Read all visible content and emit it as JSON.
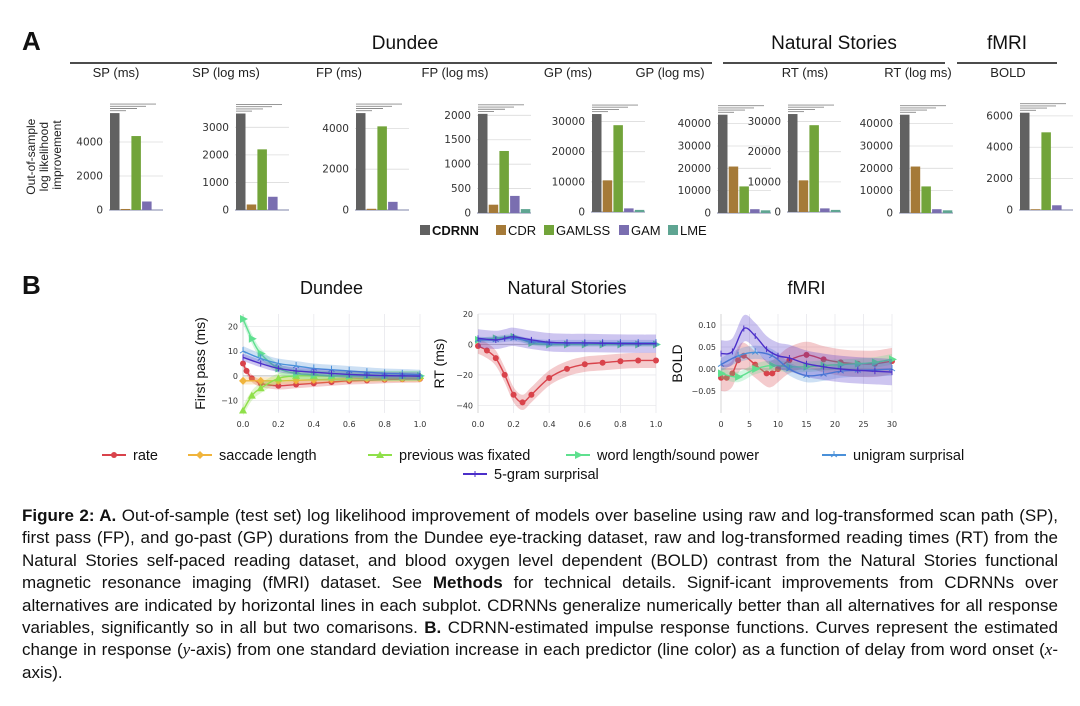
{
  "panel_a": {
    "letter": "A",
    "groups": [
      {
        "name": "Dundee",
        "panels": [
          0,
          1,
          2,
          3,
          4,
          5
        ]
      },
      {
        "name": "Natural Stories",
        "panels": [
          6,
          7
        ]
      },
      {
        "name": "fMRI",
        "panels": [
          8
        ]
      }
    ],
    "ylabel_lines": [
      "Out-of-sample",
      "log likelihood",
      "improvement"
    ],
    "legend": [
      {
        "label": "CDRNN",
        "color": "#616161",
        "bold": true
      },
      {
        "label": "CDR",
        "color": "#a57a38",
        "bold": false
      },
      {
        "label": "GAMLSS",
        "color": "#72a43a",
        "bold": false
      },
      {
        "label": "GAM",
        "color": "#7a6eb0",
        "bold": false
      },
      {
        "label": "LME",
        "color": "#5fa592",
        "bold": false
      }
    ]
  },
  "panel_b": {
    "letter": "B",
    "legend": [
      {
        "label": "rate",
        "color": "#d9434b",
        "marker": "circle"
      },
      {
        "label": "saccade length",
        "color": "#f0b43c",
        "marker": "diamond"
      },
      {
        "label": "previous was fixated",
        "color": "#8fe04a",
        "marker": "triangle"
      },
      {
        "label": "word length/sound power",
        "color": "#5fe08f",
        "marker": "arrow"
      },
      {
        "label": "unigram surprisal",
        "color": "#4a90d9",
        "marker": "tri-star"
      },
      {
        "label": "5-gram surprisal",
        "color": "#4b2fc9",
        "marker": "tick"
      }
    ]
  },
  "chart_data": [
    {
      "type": "bar",
      "title": "SP (ms)",
      "group": "Dundee",
      "categories": [
        "CDRNN",
        "CDR",
        "GAMLSS",
        "GAM",
        "LME"
      ],
      "values": [
        5700,
        60,
        4350,
        500,
        null
      ],
      "yticks": [
        0,
        2000,
        4000
      ],
      "ylim": [
        0,
        6000
      ],
      "ylabel": "Out-of-sample log likelihood improvement",
      "significance_lines": 4
    },
    {
      "type": "bar",
      "title": "SP (log ms)",
      "group": "Dundee",
      "categories": [
        "CDRNN",
        "CDR",
        "GAMLSS",
        "GAM",
        "LME"
      ],
      "values": [
        3500,
        200,
        2200,
        480,
        null
      ],
      "yticks": [
        0,
        1000,
        2000,
        3000
      ],
      "ylim": [
        0,
        3700
      ],
      "significance_lines": 4
    },
    {
      "type": "bar",
      "title": "FP (ms)",
      "group": "Dundee",
      "categories": [
        "CDRNN",
        "CDR",
        "GAMLSS",
        "GAM",
        "LME"
      ],
      "values": [
        4750,
        60,
        4100,
        400,
        null
      ],
      "yticks": [
        0,
        2000,
        4000
      ],
      "ylim": [
        0,
        5000
      ],
      "significance_lines": 4
    },
    {
      "type": "bar",
      "title": "FP (log ms)",
      "group": "Dundee",
      "categories": [
        "CDRNN",
        "CDR",
        "GAMLSS",
        "GAM",
        "LME"
      ],
      "values": [
        2030,
        170,
        1270,
        350,
        80
      ],
      "yticks": [
        0,
        500,
        1000,
        1500,
        2000
      ],
      "ylim": [
        0,
        2150
      ],
      "significance_lines": 4
    },
    {
      "type": "bar",
      "title": "GP (ms)",
      "group": "Dundee",
      "categories": [
        "CDRNN",
        "CDR",
        "GAMLSS",
        "GAM",
        "LME"
      ],
      "values": [
        32500,
        10500,
        28800,
        1200,
        700
      ],
      "yticks": [
        0,
        10000,
        20000,
        30000
      ],
      "ylim": [
        0,
        34500
      ],
      "significance_lines": 4
    },
    {
      "type": "bar",
      "title": "GP (log ms)",
      "group": "Dundee",
      "categories": [
        "CDRNN",
        "CDR",
        "GAMLSS",
        "GAM",
        "LME"
      ],
      "values": [
        44000,
        20800,
        11900,
        1700,
        1200
      ],
      "yticks": [
        0,
        10000,
        20000,
        30000,
        40000
      ],
      "ylim": [
        0,
        47000
      ],
      "significance_lines": 4
    },
    {
      "type": "bar",
      "title": "RT (ms)",
      "group": "Natural Stories",
      "categories": [
        "CDRNN",
        "CDR",
        "GAMLSS",
        "GAM",
        "LME"
      ],
      "values": [
        32500,
        10500,
        28800,
        1200,
        700
      ],
      "yticks": [
        0,
        10000,
        20000,
        30000
      ],
      "ylim": [
        0,
        34500
      ],
      "significance_lines": 4
    },
    {
      "type": "bar",
      "title": "RT (log ms)",
      "group": "Natural Stories",
      "categories": [
        "CDRNN",
        "CDR",
        "GAMLSS",
        "GAM",
        "LME"
      ],
      "values": [
        44000,
        20800,
        11900,
        1700,
        1200
      ],
      "yticks": [
        0,
        10000,
        20000,
        30000,
        40000
      ],
      "ylim": [
        0,
        47000
      ],
      "significance_lines": 4
    },
    {
      "type": "bar",
      "title": "BOLD",
      "group": "fMRI",
      "categories": [
        "CDRNN",
        "CDR",
        "GAMLSS",
        "GAM",
        "LME"
      ],
      "values": [
        6200,
        50,
        4950,
        300,
        null
      ],
      "yticks": [
        0,
        2000,
        4000,
        6000
      ],
      "ylim": [
        0,
        6500
      ],
      "significance_lines": 4
    },
    {
      "type": "line",
      "title": "Dundee",
      "ylabel": "First pass (ms)",
      "xlim": [
        0,
        1
      ],
      "ylim": [
        -15,
        25
      ],
      "xticks": [
        "0.0",
        "0.2",
        "0.4",
        "0.6",
        "0.8",
        "1.0"
      ],
      "yticks": [
        -10,
        0,
        10,
        20
      ],
      "series": [
        {
          "name": "rate",
          "x": [
            0,
            0.02,
            0.05,
            0.1,
            0.2,
            0.3,
            0.4,
            0.5,
            0.6,
            0.7,
            0.8,
            0.9,
            1.0
          ],
          "y": [
            5,
            2,
            -1,
            -3,
            -4,
            -3.5,
            -3,
            -2.5,
            -2,
            -1.8,
            -1.5,
            -1.3,
            -1.2
          ],
          "band": 1.5
        },
        {
          "name": "saccade length",
          "x": [
            0,
            0.1,
            0.2,
            0.3,
            0.4,
            0.5,
            0.6,
            0.7,
            0.8,
            0.9,
            1.0
          ],
          "y": [
            -2,
            -2,
            -2,
            -1.8,
            -1.6,
            -1.4,
            -1.2,
            -1.1,
            -1,
            -1,
            -1
          ],
          "band": 1.5
        },
        {
          "name": "previous was fixated",
          "x": [
            0,
            0.05,
            0.1,
            0.2,
            0.3,
            0.4,
            0.5,
            0.6,
            0.7,
            0.8,
            0.9,
            1.0
          ],
          "y": [
            -14,
            -8,
            -5,
            -1,
            0,
            0,
            0,
            0,
            0,
            0,
            0,
            0
          ],
          "band": 2
        },
        {
          "name": "word length/sound power",
          "x": [
            0,
            0.05,
            0.1,
            0.2,
            0.3,
            0.4,
            0.5,
            0.6,
            0.7,
            0.8,
            0.9,
            1.0
          ],
          "y": [
            23,
            15,
            9,
            3,
            1,
            0.5,
            0,
            0,
            0,
            0,
            0,
            0
          ],
          "band": 2
        },
        {
          "name": "unigram surprisal",
          "x": [
            0,
            0.1,
            0.2,
            0.3,
            0.4,
            0.5,
            0.6,
            0.7,
            0.8,
            0.9,
            1.0
          ],
          "y": [
            10,
            7,
            5,
            4,
            3,
            2.5,
            2,
            1.5,
            1,
            0.8,
            0.5
          ],
          "band": 2
        },
        {
          "name": "5-gram surprisal",
          "x": [
            0,
            0.1,
            0.2,
            0.3,
            0.4,
            0.5,
            0.6,
            0.7,
            0.8,
            0.9,
            1.0
          ],
          "y": [
            7.5,
            5,
            3,
            2,
            1.5,
            1,
            0.6,
            0.3,
            0.1,
            0,
            -0.1
          ],
          "band": 1.5
        }
      ]
    },
    {
      "type": "line",
      "title": "Natural Stories",
      "ylabel": "RT (ms)",
      "xlim": [
        0,
        1
      ],
      "ylim": [
        -45,
        20
      ],
      "xticks": [
        "0.0",
        "0.2",
        "0.4",
        "0.6",
        "0.8",
        "1.0"
      ],
      "yticks": [
        -40,
        -20,
        0,
        20
      ],
      "series": [
        {
          "name": "rate",
          "x": [
            0,
            0.05,
            0.1,
            0.15,
            0.2,
            0.25,
            0.3,
            0.4,
            0.5,
            0.6,
            0.7,
            0.8,
            0.9,
            1.0
          ],
          "y": [
            -1,
            -4,
            -9,
            -20,
            -33,
            -38,
            -33,
            -22,
            -16,
            -13,
            -12,
            -11,
            -10.5,
            -10.5
          ],
          "band": 5
        },
        {
          "name": "word length/sound power",
          "x": [
            0,
            0.1,
            0.2,
            0.3,
            0.4,
            0.5,
            0.6,
            0.7,
            0.8,
            0.9,
            1.0
          ],
          "y": [
            3,
            4,
            5,
            1,
            0,
            0,
            0,
            0,
            0,
            0,
            0
          ],
          "band": 1.5
        },
        {
          "name": "unigram surprisal",
          "x": [
            0,
            0.1,
            0.2,
            0.3,
            0.4,
            0.5,
            0.6,
            0.7,
            0.8,
            0.9,
            1.0
          ],
          "y": [
            3,
            3,
            4,
            2,
            1,
            1,
            1,
            1,
            1,
            1,
            1
          ],
          "band": 2
        },
        {
          "name": "5-gram surprisal",
          "x": [
            0,
            0.1,
            0.15,
            0.2,
            0.3,
            0.4,
            0.5,
            0.6,
            0.7,
            0.8,
            0.9,
            1.0
          ],
          "y": [
            4,
            3,
            4,
            5,
            3,
            1.5,
            1,
            1,
            0.8,
            0.6,
            0.5,
            0.5
          ],
          "band": 6
        }
      ]
    },
    {
      "type": "line",
      "title": "fMRI",
      "ylabel": "BOLD",
      "xlim": [
        0,
        30
      ],
      "ylim": [
        -0.1,
        0.125
      ],
      "xticks": [
        "0",
        "5",
        "10",
        "15",
        "20",
        "25",
        "30"
      ],
      "yticks": [
        "-0.05",
        "0.00",
        "0.05",
        "0.10"
      ],
      "series": [
        {
          "name": "rate",
          "x": [
            0,
            1,
            2,
            3,
            4,
            6,
            8,
            9,
            10,
            12,
            15,
            18,
            21,
            24,
            27,
            30
          ],
          "y": [
            -0.02,
            -0.02,
            -0.01,
            0.02,
            0.03,
            0.01,
            -0.01,
            -0.01,
            0.0,
            0.02,
            0.032,
            0.022,
            0.015,
            0.012,
            0.012,
            0.018
          ],
          "band": 0.03
        },
        {
          "name": "word length/sound power",
          "x": [
            0,
            3,
            6,
            9,
            12,
            15,
            18,
            21,
            24,
            27,
            30
          ],
          "y": [
            -0.01,
            -0.018,
            0.0,
            0.008,
            0.005,
            0.005,
            0.008,
            0.01,
            0.012,
            0.015,
            0.022
          ],
          "band": 0.012
        },
        {
          "name": "unigram surprisal",
          "x": [
            0,
            3,
            6,
            9,
            12,
            15,
            18,
            21,
            24,
            27,
            30
          ],
          "y": [
            0.01,
            0.03,
            0.038,
            0.03,
            0.0,
            -0.015,
            -0.012,
            -0.005,
            -0.003,
            -0.002,
            0.0
          ],
          "band": 0.015
        },
        {
          "name": "5-gram surprisal",
          "x": [
            0,
            2,
            4,
            6,
            8,
            10,
            12,
            15,
            18,
            21,
            24,
            27,
            30
          ],
          "y": [
            0.035,
            0.04,
            0.092,
            0.075,
            0.045,
            0.03,
            0.025,
            0.012,
            0.005,
            0.0,
            -0.003,
            -0.005,
            -0.007
          ],
          "band": 0.03
        }
      ]
    }
  ],
  "caption": {
    "segments": [
      {
        "text": "Figure 2: A.",
        "bold": true
      },
      {
        "text": " Out-of-sample (test set) log likelihood improvement of models over baseline using raw and log-transformed scan path (SP), first pass (FP), and go-past (GP) durations from the Dundee eye-tracking dataset, raw and log-transformed reading times (RT) from the Natural Stories self-paced reading dataset, and blood oxygen level dependent (BOLD) contrast from the Natural Stories functional magnetic resonance imaging (fMRI) dataset. See ",
        "bold": false
      },
      {
        "text": "Methods",
        "bold": true
      },
      {
        "text": " for technical details. Signif-icant improvements from CDRNNs over alternatives are indicated by horizontal lines in each subplot. CDRNNs generalize numerically better than all alternatives for all response variables, significantly so in all but two comarisons.  ",
        "bold": false
      },
      {
        "text": "B.",
        "bold": true
      },
      {
        "text": " CDRNN-estimated impulse response functions.  Curves represent the estimated change in response (",
        "bold": false
      },
      {
        "text": "y",
        "italic": true
      },
      {
        "text": "-axis) from one standard deviation increase in each predictor (line color) as a function of delay from word onset (",
        "bold": false
      },
      {
        "text": "x",
        "italic": true
      },
      {
        "text": "-axis).",
        "bold": false
      }
    ]
  }
}
